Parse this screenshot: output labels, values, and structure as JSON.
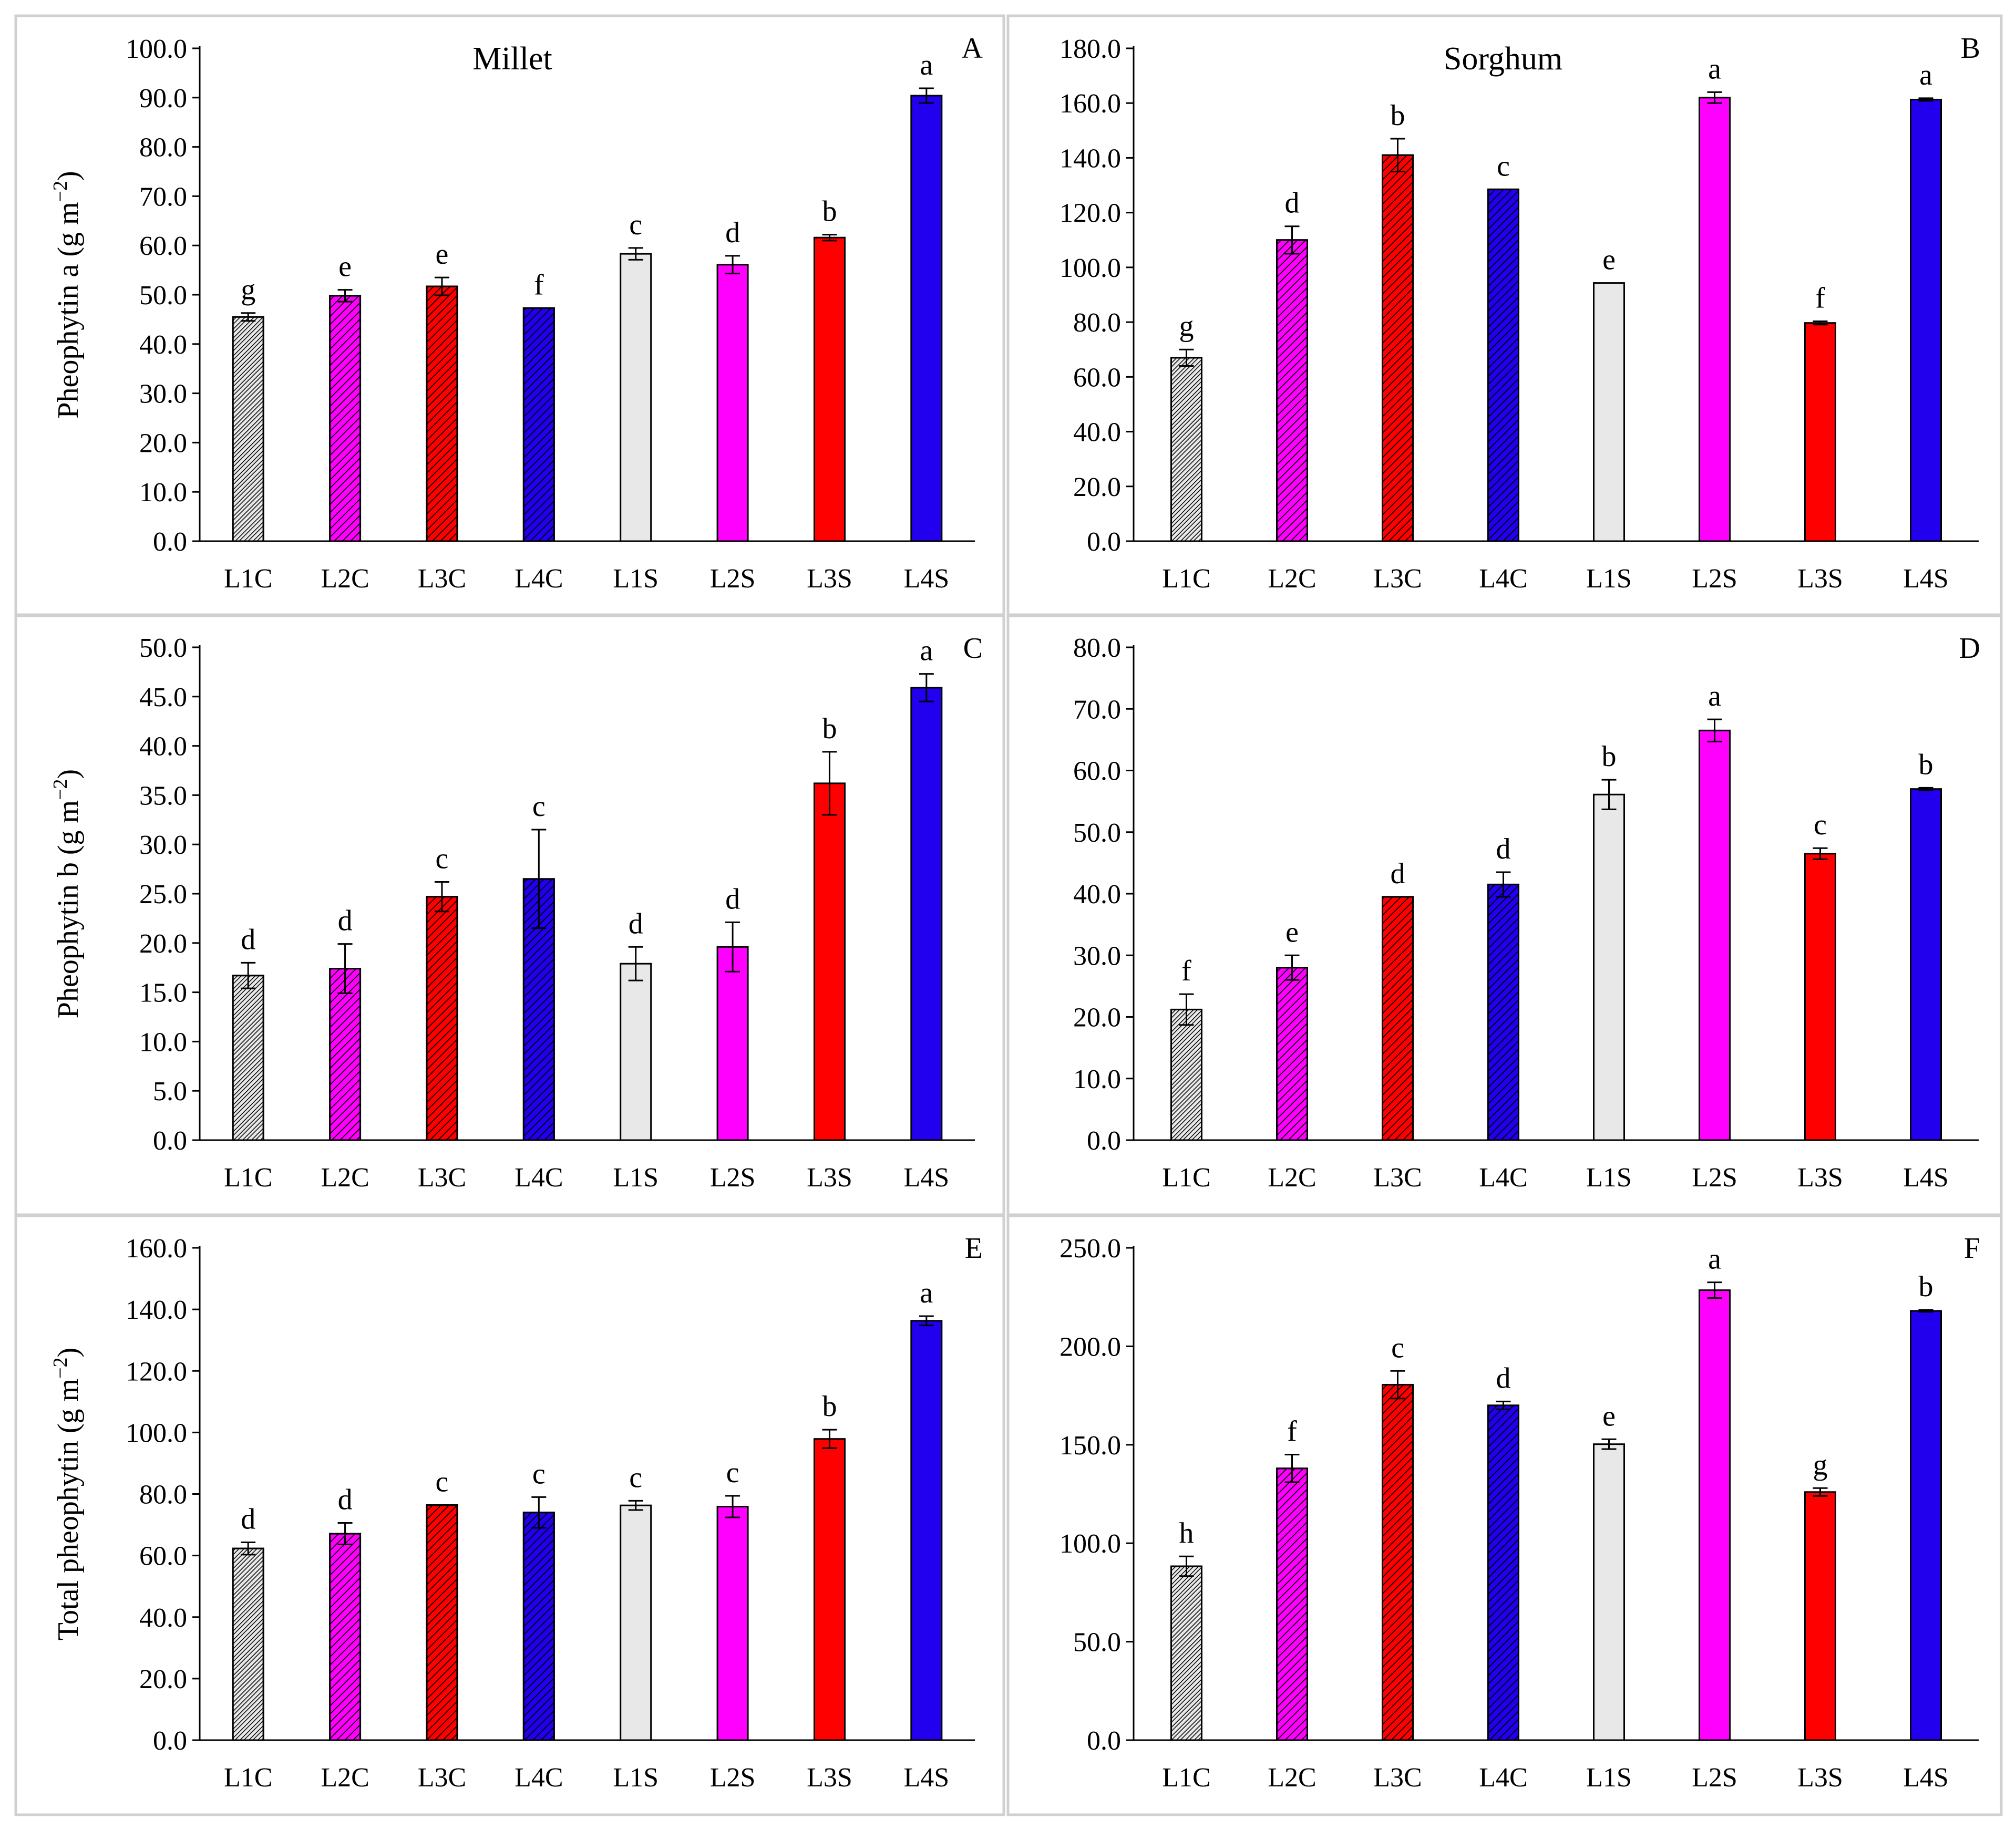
{
  "colors": {
    "L1": "#e8e8e8",
    "L2": "#ff00ff",
    "L3": "#ff0000",
    "L4": "#2200ee",
    "edge": "#000000",
    "panel_border": "#d0d0d0"
  },
  "chart_data": [
    {
      "panel": "A",
      "type": "bar",
      "title": "Millet",
      "crop": "millet",
      "ylabel": "Pheophytin a (g m−2)",
      "ylim": [
        0,
        100
      ],
      "yticks": [
        0,
        10,
        20,
        30,
        40,
        50,
        60,
        70,
        80,
        90,
        100
      ],
      "categories": [
        "L1C",
        "L2C",
        "L3C",
        "L4C",
        "L1S",
        "L2S",
        "L3S",
        "L4S"
      ],
      "values": [
        45.5,
        49.8,
        51.7,
        47.3,
        58.3,
        56.1,
        61.6,
        90.4
      ],
      "errors": [
        0.8,
        1.2,
        1.8,
        0.0,
        1.2,
        1.8,
        0.6,
        1.5
      ],
      "letters": [
        "g",
        "e",
        "e",
        "f",
        "c",
        "d",
        "b",
        "a"
      ]
    },
    {
      "panel": "B",
      "type": "bar",
      "title": "Sorghum",
      "crop": "sorghum",
      "ylabel": "",
      "ylim": [
        0,
        180
      ],
      "yticks": [
        0,
        20,
        40,
        60,
        80,
        100,
        120,
        140,
        160,
        180
      ],
      "categories": [
        "L1C",
        "L2C",
        "L3C",
        "L4C",
        "L1S",
        "L2S",
        "L3S",
        "L4S"
      ],
      "values": [
        67.0,
        110.0,
        141.0,
        128.5,
        94.3,
        162.0,
        79.7,
        161.3
      ],
      "errors": [
        3.0,
        5.0,
        6.0,
        0.0,
        0.0,
        2.0,
        0.6,
        0.5
      ],
      "letters": [
        "g",
        "d",
        "b",
        "c",
        "e",
        "a",
        "f",
        "a"
      ]
    },
    {
      "panel": "C",
      "type": "bar",
      "title": "",
      "crop": "millet",
      "ylabel": "Pheophytin b (g m−2)",
      "ylim": [
        0,
        50
      ],
      "yticks": [
        0,
        5,
        10,
        15,
        20,
        25,
        30,
        35,
        40,
        45,
        50
      ],
      "categories": [
        "L1C",
        "L2C",
        "L3C",
        "L4C",
        "L1S",
        "L2S",
        "L3S",
        "L4S"
      ],
      "values": [
        16.7,
        17.4,
        24.7,
        26.5,
        17.9,
        19.6,
        36.2,
        45.9
      ],
      "errors": [
        1.3,
        2.5,
        1.5,
        5.0,
        1.7,
        2.5,
        3.2,
        1.4
      ],
      "letters": [
        "d",
        "d",
        "c",
        "c",
        "d",
        "d",
        "b",
        "a"
      ]
    },
    {
      "panel": "D",
      "type": "bar",
      "title": "",
      "crop": "sorghum",
      "ylabel": "",
      "ylim": [
        0,
        80
      ],
      "yticks": [
        0,
        10,
        20,
        30,
        40,
        50,
        60,
        70,
        80
      ],
      "categories": [
        "L1C",
        "L2C",
        "L3C",
        "L4C",
        "L1S",
        "L2S",
        "L3S",
        "L4S"
      ],
      "values": [
        21.2,
        28.0,
        39.5,
        41.5,
        56.1,
        66.5,
        46.5,
        57.0
      ],
      "errors": [
        2.5,
        2.0,
        0.0,
        2.0,
        2.4,
        1.8,
        0.9,
        0.2
      ],
      "letters": [
        "f",
        "e",
        "d",
        "d",
        "b",
        "a",
        "c",
        "b"
      ]
    },
    {
      "panel": "E",
      "type": "bar",
      "title": "",
      "crop": "millet",
      "ylabel": "Total pheophytin (g m−2)",
      "ylim": [
        0,
        160
      ],
      "yticks": [
        0,
        20,
        40,
        60,
        80,
        100,
        120,
        140,
        160
      ],
      "categories": [
        "L1C",
        "L2C",
        "L3C",
        "L4C",
        "L1S",
        "L2S",
        "L3S",
        "L4S"
      ],
      "values": [
        62.3,
        67.1,
        76.4,
        74.0,
        76.3,
        75.9,
        97.9,
        136.3
      ],
      "errors": [
        2.0,
        3.5,
        0.0,
        5.0,
        1.5,
        3.5,
        3.0,
        1.5
      ],
      "letters": [
        "d",
        "d",
        "c",
        "c",
        "c",
        "c",
        "b",
        "a"
      ]
    },
    {
      "panel": "F",
      "type": "bar",
      "title": "",
      "crop": "sorghum",
      "ylabel": "",
      "ylim": [
        0,
        250
      ],
      "yticks": [
        0,
        50,
        100,
        150,
        200,
        250
      ],
      "categories": [
        "L1C",
        "L2C",
        "L3C",
        "L4C",
        "L1S",
        "L2S",
        "L3S",
        "L4S"
      ],
      "values": [
        88.3,
        138.0,
        180.5,
        170.0,
        150.3,
        228.5,
        126.0,
        218.0
      ],
      "errors": [
        5.0,
        7.0,
        7.0,
        2.0,
        2.5,
        4.0,
        2.0,
        0.5
      ],
      "letters": [
        "h",
        "f",
        "c",
        "d",
        "e",
        "a",
        "g",
        "b"
      ]
    }
  ]
}
